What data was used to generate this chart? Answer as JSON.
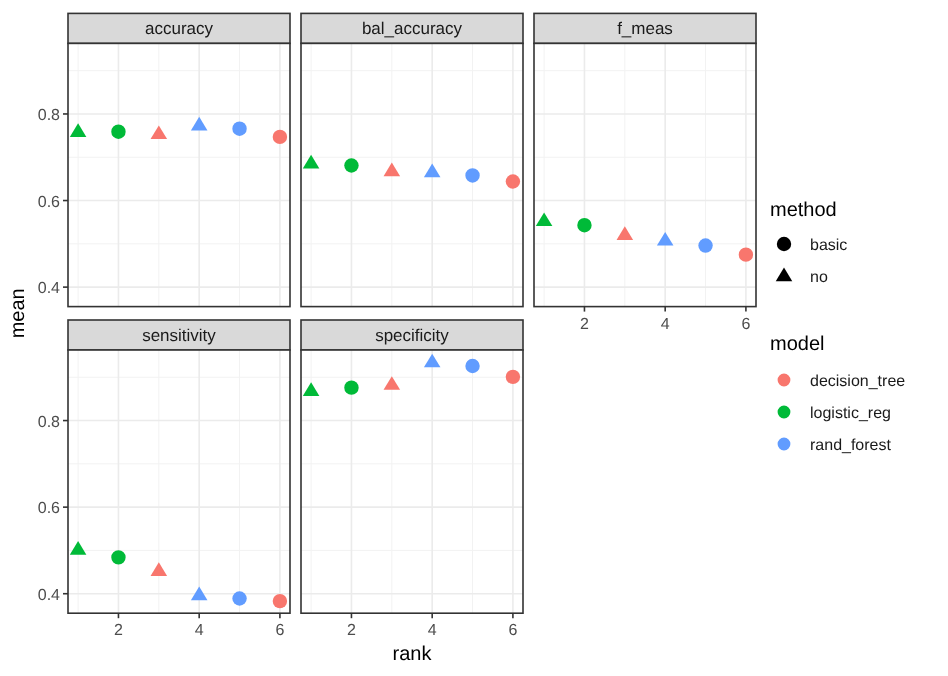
{
  "chart_data": [
    {
      "type": "scatter",
      "title": "accuracy",
      "ylabel": "mean",
      "xlim": [
        0.75,
        6.25
      ],
      "xticks": [
        2,
        4,
        6
      ],
      "ylim": [
        0.355,
        0.963
      ],
      "yticks": [
        0.4,
        0.6,
        0.8
      ],
      "grid": true,
      "tick_labels": "y",
      "series": [
        {
          "color": "#00ba38",
          "marker": "triangle",
          "x": [
            1
          ],
          "values": [
            0.759
          ]
        },
        {
          "color": "#00ba38",
          "marker": "circle",
          "x": [
            2
          ],
          "values": [
            0.759
          ]
        },
        {
          "color": "#f8766d",
          "marker": "triangle",
          "x": [
            3
          ],
          "values": [
            0.754
          ]
        },
        {
          "color": "#619cff",
          "marker": "triangle",
          "x": [
            4
          ],
          "values": [
            0.774
          ]
        },
        {
          "color": "#619cff",
          "marker": "circle",
          "x": [
            5
          ],
          "values": [
            0.766
          ]
        },
        {
          "color": "#f8766d",
          "marker": "circle",
          "x": [
            6
          ],
          "values": [
            0.747
          ]
        }
      ]
    },
    {
      "type": "scatter",
      "title": "bal_accuracy",
      "xlim": [
        0.75,
        6.25
      ],
      "xticks": [
        2,
        4,
        6
      ],
      "ylim": [
        0.355,
        0.963
      ],
      "yticks": [
        0.4,
        0.6,
        0.8
      ],
      "grid": true,
      "tick_labels": false,
      "series": [
        {
          "color": "#00ba38",
          "marker": "triangle",
          "x": [
            1
          ],
          "values": [
            0.686
          ]
        },
        {
          "color": "#00ba38",
          "marker": "circle",
          "x": [
            2
          ],
          "values": [
            0.681
          ]
        },
        {
          "color": "#f8766d",
          "marker": "triangle",
          "x": [
            3
          ],
          "values": [
            0.668
          ]
        },
        {
          "color": "#619cff",
          "marker": "triangle",
          "x": [
            4
          ],
          "values": [
            0.666
          ]
        },
        {
          "color": "#619cff",
          "marker": "circle",
          "x": [
            5
          ],
          "values": [
            0.658
          ]
        },
        {
          "color": "#f8766d",
          "marker": "circle",
          "x": [
            6
          ],
          "values": [
            0.644
          ]
        }
      ]
    },
    {
      "type": "scatter",
      "title": "f_meas",
      "xlim": [
        0.75,
        6.25
      ],
      "xticks": [
        2,
        4,
        6
      ],
      "ylim": [
        0.355,
        0.963
      ],
      "yticks": [
        0.4,
        0.6,
        0.8
      ],
      "grid": true,
      "tick_labels": "x",
      "legend": "right",
      "legend_title": [
        "method",
        "model"
      ],
      "annotations": [
        "basic",
        "no"
      ],
      "series": [
        {
          "name": "decision_tree",
          "color": "#f8766d",
          "marker": "circle",
          "x": [
            6
          ],
          "values": [
            0.475
          ]
        },
        {
          "name": "logistic_reg",
          "color": "#00ba38",
          "marker": "circle",
          "x": [
            2
          ],
          "values": [
            0.543
          ]
        },
        {
          "name": "rand_forest",
          "color": "#619cff",
          "marker": "circle",
          "x": [
            5
          ],
          "values": [
            0.496
          ]
        },
        {
          "color": "#00ba38",
          "marker": "triangle",
          "x": [
            1
          ],
          "values": [
            0.553
          ]
        },
        {
          "color": "#f8766d",
          "marker": "triangle",
          "x": [
            3
          ],
          "values": [
            0.521
          ]
        },
        {
          "color": "#619cff",
          "marker": "triangle",
          "x": [
            4
          ],
          "values": [
            0.508
          ]
        }
      ]
    },
    {
      "type": "scatter",
      "title": "sensitivity",
      "xlim": [
        0.75,
        6.25
      ],
      "xticks": [
        2,
        4,
        6
      ],
      "ylim": [
        0.355,
        0.963
      ],
      "yticks": [
        0.4,
        0.6,
        0.8
      ],
      "grid": true,
      "series": [
        {
          "color": "#00ba38",
          "marker": "triangle",
          "x": [
            1
          ],
          "values": [
            0.502
          ]
        },
        {
          "color": "#00ba38",
          "marker": "circle",
          "x": [
            2
          ],
          "values": [
            0.484
          ]
        },
        {
          "color": "#f8766d",
          "marker": "triangle",
          "x": [
            3
          ],
          "values": [
            0.453
          ]
        },
        {
          "color": "#619cff",
          "marker": "triangle",
          "x": [
            4
          ],
          "values": [
            0.397
          ]
        },
        {
          "color": "#619cff",
          "marker": "circle",
          "x": [
            5
          ],
          "values": [
            0.389
          ]
        },
        {
          "color": "#f8766d",
          "marker": "circle",
          "x": [
            6
          ],
          "values": [
            0.383
          ]
        }
      ]
    },
    {
      "type": "scatter",
      "title": "specificity",
      "xlabel": "rank",
      "xlim": [
        0.75,
        6.25
      ],
      "xticks": [
        2,
        4,
        6
      ],
      "ylim": [
        0.355,
        0.963
      ],
      "yticks": [
        0.4,
        0.6,
        0.8
      ],
      "grid": true,
      "tick_labels": "x",
      "series": [
        {
          "color": "#00ba38",
          "marker": "triangle",
          "x": [
            1
          ],
          "values": [
            0.869
          ]
        },
        {
          "color": "#00ba38",
          "marker": "circle",
          "x": [
            2
          ],
          "values": [
            0.876
          ]
        },
        {
          "color": "#f8766d",
          "marker": "triangle",
          "x": [
            3
          ],
          "values": [
            0.883
          ]
        },
        {
          "color": "#619cff",
          "marker": "triangle",
          "x": [
            4
          ],
          "values": [
            0.935
          ]
        },
        {
          "color": "#619cff",
          "marker": "circle",
          "x": [
            5
          ],
          "values": [
            0.926
          ]
        },
        {
          "color": "#f8766d",
          "marker": "circle",
          "x": [
            6
          ],
          "values": [
            0.901
          ]
        }
      ]
    }
  ]
}
